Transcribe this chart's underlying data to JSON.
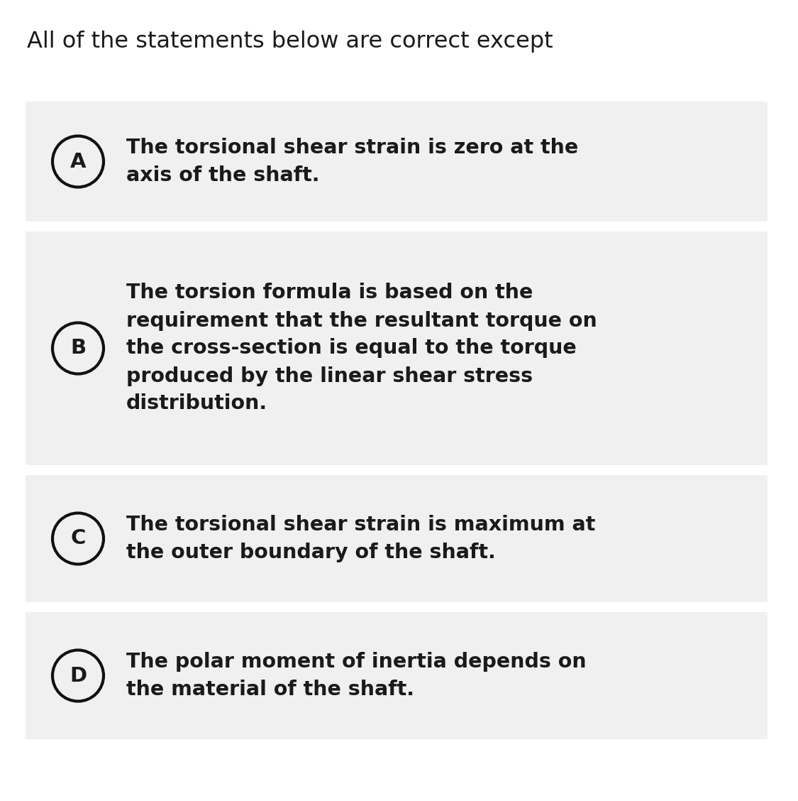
{
  "title": "All of the statements below are correct except",
  "title_fontsize": 23,
  "title_color": "#1a1a1a",
  "background_color": "#ffffff",
  "card_background": "#f0f0f0",
  "text_color": "#1a1a1a",
  "circle_edge_color": "#111111",
  "circle_fill_color": "#f0f0f0",
  "text_fontsize": 20.5,
  "label_fontsize": 21,
  "fig_width": 11.25,
  "fig_height": 11.28,
  "dpi": 100,
  "options": [
    {
      "label": "A",
      "text": "The torsional shear strain is zero at the\naxis of the shaft."
    },
    {
      "label": "B",
      "text": "The torsion formula is based on the\nrequirement that the resultant torque on\nthe cross-section is equal to the torque\nproduced by the linear shear stress\ndistribution."
    },
    {
      "label": "C",
      "text": "The torsional shear strain is maximum at\nthe outer boundary of the shaft."
    },
    {
      "label": "D",
      "text": "The polar moment of inertia depends on\nthe material of the shaft."
    }
  ]
}
